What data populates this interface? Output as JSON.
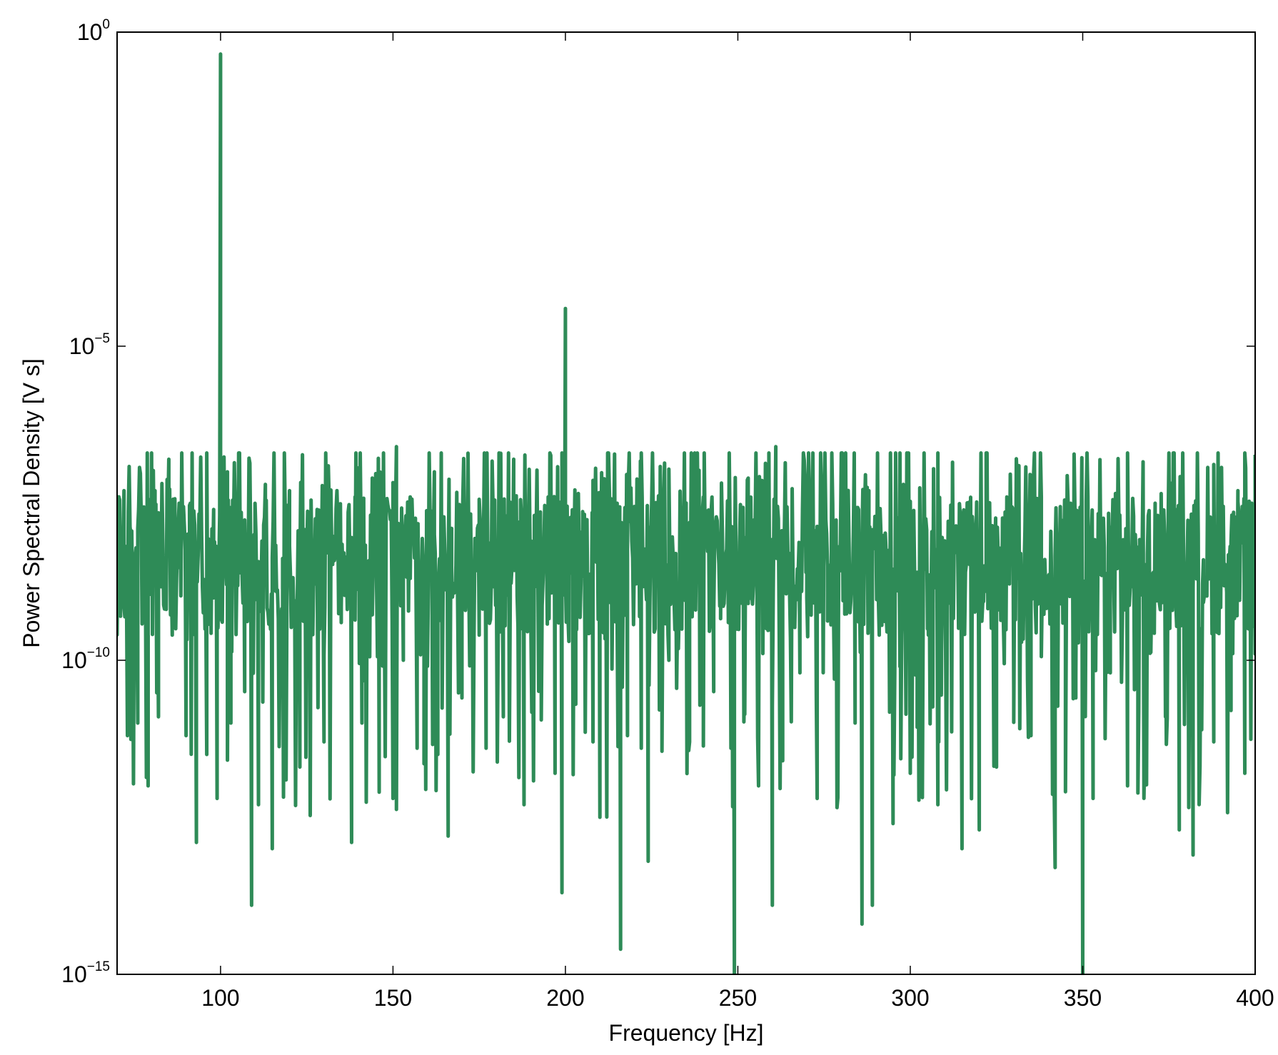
{
  "chart_data": {
    "type": "line",
    "title": "",
    "xlabel": "Frequency [Hz]",
    "ylabel": "Power Spectral Density [V s]",
    "xlim": [
      70,
      400
    ],
    "ylim": [
      1e-15,
      1
    ],
    "yscale": "log",
    "grid": false,
    "x_ticks": [
      100,
      150,
      200,
      250,
      300,
      350,
      400
    ],
    "y_ticks": [
      {
        "value": 1,
        "base": "10",
        "exp": "0"
      },
      {
        "value": 1e-05,
        "base": "10",
        "exp": "−5"
      },
      {
        "value": 1e-10,
        "base": "10",
        "exp": "−10"
      },
      {
        "value": 1e-15,
        "base": "10",
        "exp": "−15"
      }
    ],
    "series_color": "#2e8b57",
    "noise_floor_log10_range": [
      -12.5,
      -6.7
    ],
    "noise_floor_typical_log10": -8.5,
    "series": [
      {
        "points": [
          [
            70,
            -8.1
          ],
          [
            71,
            -9.3
          ],
          [
            72,
            -7.3
          ],
          [
            73,
            -11.2
          ],
          [
            74,
            -8.0
          ],
          [
            76,
            -11.0
          ],
          [
            78,
            -8.4
          ],
          [
            79,
            -12.0
          ],
          [
            81,
            -7.3
          ],
          [
            82,
            -10.9
          ],
          [
            85,
            -6.8
          ],
          [
            86,
            -9.6
          ],
          [
            88,
            -7.5
          ],
          [
            90,
            -11.2
          ],
          [
            91,
            -8.3
          ],
          [
            93,
            -12.9
          ],
          [
            94,
            -7.9
          ],
          [
            96,
            -11.5
          ],
          [
            98,
            -7.6
          ],
          [
            99,
            -12.2
          ],
          [
            100,
            -0.35
          ],
          [
            101,
            -8.6
          ],
          [
            102,
            -7.0
          ],
          [
            103,
            -11.0
          ],
          [
            105,
            -7.5
          ],
          [
            107,
            -10.5
          ],
          [
            109,
            -13.9
          ],
          [
            110,
            -8.4
          ],
          [
            111,
            -12.3
          ],
          [
            113,
            -7.2
          ],
          [
            115,
            -13.0
          ],
          [
            116,
            -8.9
          ],
          [
            118,
            -9.9
          ],
          [
            120,
            -7.3
          ],
          [
            123,
            -11.7
          ],
          [
            125,
            -8.2
          ],
          [
            128,
            -7.6
          ],
          [
            130,
            -11.3
          ],
          [
            132,
            -8.0
          ],
          [
            135,
            -9.4
          ],
          [
            138,
            -12.9
          ],
          [
            139,
            -7.4
          ],
          [
            141,
            -11.0
          ],
          [
            143,
            -8.5
          ],
          [
            144,
            -7.1
          ],
          [
            146,
            -12.1
          ],
          [
            148,
            -8.0
          ],
          [
            150,
            -12.2
          ],
          [
            151,
            -6.6
          ],
          [
            153,
            -10.0
          ],
          [
            155,
            -7.4
          ],
          [
            157,
            -11.4
          ],
          [
            159,
            -8.4
          ],
          [
            162,
            -7.0
          ],
          [
            163,
            -11.5
          ],
          [
            166,
            -12.8
          ],
          [
            167,
            -7.9
          ],
          [
            170,
            -10.6
          ],
          [
            172,
            -8.2
          ],
          [
            175,
            -9.6
          ],
          [
            177,
            -11.4
          ],
          [
            180,
            -8.4
          ],
          [
            182,
            -10.9
          ],
          [
            184,
            -9.0
          ],
          [
            185,
            -6.8
          ],
          [
            187,
            -9.5
          ],
          [
            188,
            -12.3
          ],
          [
            190,
            -8.1
          ],
          [
            193,
            -10.2
          ],
          [
            195,
            -7.4
          ],
          [
            197,
            -11.8
          ],
          [
            199,
            -13.7
          ],
          [
            200,
            -4.4
          ],
          [
            201,
            -9.7
          ],
          [
            203,
            -10.7
          ],
          [
            205,
            -8.2
          ],
          [
            208,
            -11.3
          ],
          [
            210,
            -12.5
          ],
          [
            213,
            -8.4
          ],
          [
            215,
            -7.5
          ],
          [
            216,
            -14.6
          ],
          [
            218,
            -11.2
          ],
          [
            220,
            -8.2
          ],
          [
            222,
            -11.4
          ],
          [
            224,
            -13.2
          ],
          [
            226,
            -9.5
          ],
          [
            228,
            -7.4
          ],
          [
            230,
            -10.0
          ],
          [
            232,
            -8.3
          ],
          [
            236,
            -11.3
          ],
          [
            240,
            -7.4
          ],
          [
            243,
            -10.5
          ],
          [
            245,
            -8.1
          ],
          [
            248,
            -11.4
          ],
          [
            249,
            -15.0
          ],
          [
            250,
            -8.3
          ],
          [
            252,
            -10.1
          ],
          [
            253,
            -7.1
          ],
          [
            256,
            -12.0
          ],
          [
            259,
            -7.0
          ],
          [
            260,
            -13.9
          ],
          [
            261,
            -6.6
          ],
          [
            263,
            -11.6
          ],
          [
            265,
            -8.5
          ],
          [
            268,
            -10.2
          ],
          [
            270,
            -7.4
          ],
          [
            273,
            -12.2
          ],
          [
            276,
            -8.5
          ],
          [
            278,
            -10.3
          ],
          [
            281,
            -8.2
          ],
          [
            284,
            -11.0
          ],
          [
            285,
            -7.6
          ],
          [
            286,
            -14.2
          ],
          [
            288,
            -7.3
          ],
          [
            289,
            -13.9
          ],
          [
            291,
            -9.6
          ],
          [
            293,
            -8.3
          ],
          [
            295,
            -12.6
          ],
          [
            297,
            -10.1
          ],
          [
            298,
            -7.2
          ],
          [
            300,
            -11.8
          ],
          [
            302,
            -8.6
          ],
          [
            305,
            -9.5
          ],
          [
            308,
            -12.3
          ],
          [
            310,
            -8.1
          ],
          [
            312,
            -11.0
          ],
          [
            315,
            -13.0
          ],
          [
            317,
            -8.0
          ],
          [
            320,
            -12.7
          ],
          [
            322,
            -8.9
          ],
          [
            325,
            -11.7
          ],
          [
            328,
            -7.4
          ],
          [
            330,
            -10.5
          ],
          [
            332,
            -8.3
          ],
          [
            335,
            -11.2
          ],
          [
            338,
            -7.4
          ],
          [
            342,
            -13.3
          ],
          [
            345,
            -8.2
          ],
          [
            348,
            -10.6
          ],
          [
            350,
            -15.0
          ],
          [
            351,
            -8.3
          ],
          [
            353,
            -12.2
          ],
          [
            356,
            -8.5
          ],
          [
            358,
            -10.2
          ],
          [
            360,
            -7.6
          ],
          [
            363,
            -12.0
          ],
          [
            366,
            -8.2
          ],
          [
            368,
            -11.3
          ],
          [
            371,
            -7.5
          ],
          [
            374,
            -10.9
          ],
          [
            377,
            -7.6
          ],
          [
            378,
            -12.7
          ],
          [
            380,
            -8.9
          ],
          [
            382,
            -13.1
          ],
          [
            385,
            -8.4
          ],
          [
            388,
            -11.3
          ],
          [
            390,
            -7.7
          ],
          [
            393,
            -10.8
          ],
          [
            395,
            -7.3
          ],
          [
            397,
            -11.8
          ],
          [
            398,
            -9.5
          ],
          [
            399,
            -7.5
          ],
          [
            400,
            -9.9
          ]
        ]
      }
    ]
  }
}
